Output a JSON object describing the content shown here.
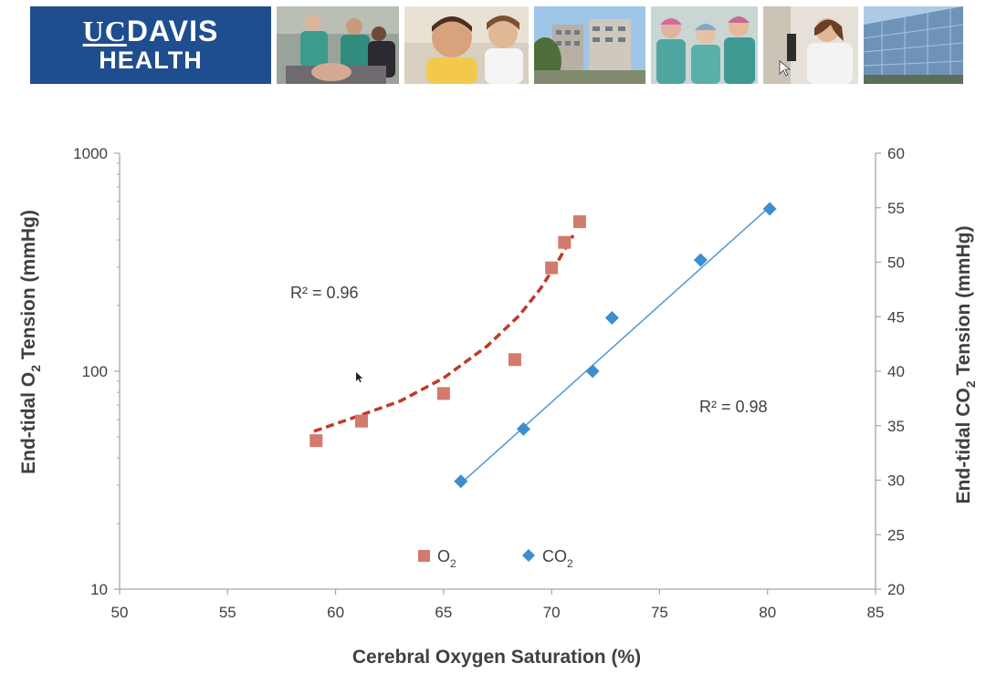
{
  "banner": {
    "logo_line1_a": "UC",
    "logo_line1_b": "DAVIS",
    "logo_line2": "HEALTH",
    "photos": [
      "surgery-team-photo",
      "boy-and-doctor-photo",
      "hospital-campus-photo",
      "surgical-nurses-photo",
      "lab-researcher-photo",
      "glass-building-photo"
    ]
  },
  "chart_data": {
    "type": "scatter",
    "xlabel": "Cerebral Oxygen Saturation (%)",
    "ylabel_left": {
      "main": "End-tidal O",
      "sub": "2",
      "rest": " Tension (mmHg)"
    },
    "ylabel_right": {
      "main": "End-tidal CO",
      "sub": "2",
      "rest": " Tension (mmHg)"
    },
    "xlim": [
      50,
      85
    ],
    "x_ticks": [
      50,
      55,
      60,
      65,
      70,
      75,
      80,
      85
    ],
    "y_left": {
      "scale": "log",
      "lim": [
        10,
        1000
      ],
      "ticks": [
        10,
        100,
        1000
      ]
    },
    "y_right": {
      "scale": "linear",
      "lim": [
        20,
        60
      ],
      "ticks": [
        20,
        25,
        30,
        35,
        40,
        45,
        50,
        55,
        60
      ]
    },
    "series": [
      {
        "name": "O2",
        "label_main": "O",
        "label_sub": "2",
        "axis": "left",
        "marker": "square",
        "color": "#d27a6e",
        "trend_color": "#c0392b",
        "trend_style": "dashed",
        "points": [
          [
            59.1,
            48
          ],
          [
            61.2,
            59
          ],
          [
            65.0,
            79
          ],
          [
            68.3,
            113
          ],
          [
            70.0,
            298
          ],
          [
            70.6,
            390
          ],
          [
            71.3,
            485
          ]
        ],
        "trend": [
          [
            59.0,
            53
          ],
          [
            61.0,
            62
          ],
          [
            63.0,
            73
          ],
          [
            65.0,
            93
          ],
          [
            67.0,
            130
          ],
          [
            68.5,
            180
          ],
          [
            69.5,
            240
          ],
          [
            70.3,
            320
          ],
          [
            71.0,
            420
          ]
        ],
        "r2_label": "R² = 0.96"
      },
      {
        "name": "CO2",
        "label_main": "CO",
        "label_sub": "2",
        "axis": "right",
        "marker": "diamond",
        "color": "#3b8fd0",
        "trend_color": "#5b9bd5",
        "trend_style": "solid",
        "points": [
          [
            65.8,
            29.9
          ],
          [
            68.7,
            34.7
          ],
          [
            71.9,
            40.0
          ],
          [
            72.8,
            44.9
          ],
          [
            76.9,
            50.2
          ],
          [
            80.1,
            54.9
          ]
        ],
        "trend": [
          [
            65.8,
            29.7
          ],
          [
            80.1,
            55.1
          ]
        ],
        "r2_label": "R² = 0.98"
      }
    ],
    "legend_position": "bottom-center",
    "grid": false
  }
}
